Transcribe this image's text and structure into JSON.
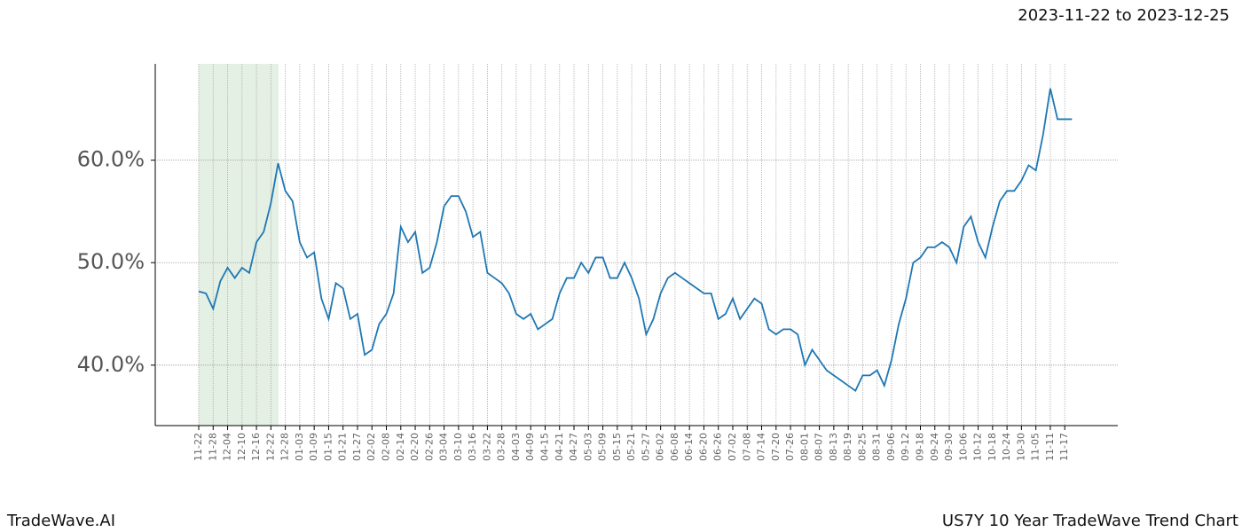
{
  "header": {
    "date_range": "2023-11-22 to 2023-12-25"
  },
  "footer": {
    "brand": "TradeWave.AI",
    "chart_name": "US7Y 10 Year TradeWave Trend Chart"
  },
  "chart_data": {
    "type": "line",
    "color": "#1f77b4",
    "grid": true,
    "categories": [
      "11-22",
      null,
      "11-28",
      null,
      "12-04",
      null,
      "12-10",
      null,
      "12-16",
      null,
      "12-22",
      null,
      "12-28",
      null,
      "01-03",
      null,
      "01-09",
      null,
      "01-15",
      null,
      "01-21",
      null,
      "01-27",
      null,
      "02-02",
      null,
      "02-08",
      null,
      "02-14",
      null,
      "02-20",
      null,
      "02-26",
      null,
      "03-04",
      null,
      "03-10",
      null,
      "03-16",
      null,
      "03-22",
      null,
      "03-28",
      null,
      "04-03",
      null,
      "04-09",
      null,
      "04-15",
      null,
      "04-21",
      null,
      "04-27",
      null,
      "05-03",
      null,
      "05-09",
      null,
      "05-15",
      null,
      "05-21",
      null,
      "05-27",
      null,
      "06-02",
      null,
      "06-08",
      null,
      "06-14",
      null,
      "06-20",
      null,
      "06-26",
      null,
      "07-02",
      null,
      "07-08",
      null,
      "07-14",
      null,
      "07-20",
      null,
      "07-26",
      null,
      "08-01",
      null,
      "08-07",
      null,
      "08-13",
      null,
      "08-19",
      null,
      "08-25",
      null,
      "08-31",
      null,
      "09-06",
      null,
      "09-12",
      null,
      "09-18",
      null,
      "09-24",
      null,
      "09-30",
      null,
      "10-06",
      null,
      "10-12",
      null,
      "10-18",
      null,
      "10-24",
      null,
      "10-30",
      null,
      "11-05",
      null,
      "11-11",
      null,
      "11-17",
      null
    ],
    "values": [
      47.2,
      47,
      45.5,
      48.2,
      49.5,
      48.5,
      49.5,
      49,
      52,
      53,
      55.8,
      59.7,
      57,
      56,
      52,
      50.5,
      51,
      46.5,
      44.5,
      48,
      47.5,
      44.5,
      45,
      41,
      41.5,
      44,
      45,
      47,
      53.5,
      52,
      53,
      49,
      49.5,
      52,
      55.5,
      56.5,
      56.5,
      55,
      52.5,
      53,
      49,
      48.5,
      48,
      47,
      45,
      44.5,
      45,
      43.5,
      44,
      44.5,
      47,
      48.5,
      48.5,
      50,
      49,
      50.5,
      50.5,
      48.5,
      48.5,
      50,
      48.5,
      46.5,
      43,
      44.5,
      47,
      48.5,
      49,
      48.5,
      48,
      47.5,
      47,
      47,
      44.5,
      45,
      46.5,
      44.5,
      45.5,
      46.5,
      46,
      43.5,
      43,
      43.5,
      43.5,
      43,
      40,
      41.5,
      40.5,
      39.5,
      39,
      38.5,
      38,
      37.5,
      39,
      39,
      39.5,
      38,
      40.5,
      44,
      46.5,
      50,
      50.5,
      51.5,
      51.5,
      52,
      51.5,
      50,
      53.5,
      54.5,
      52,
      50.5,
      53.5,
      56,
      57,
      57,
      58,
      59.5,
      59,
      62.5,
      67,
      64,
      64,
      64
    ],
    "ylim": [
      34.1,
      69.4
    ],
    "yticks": [
      {
        "value": 40,
        "label": "40.0%"
      },
      {
        "value": 50,
        "label": "50.0%"
      },
      {
        "value": 60,
        "label": "60.0%"
      }
    ]
  }
}
